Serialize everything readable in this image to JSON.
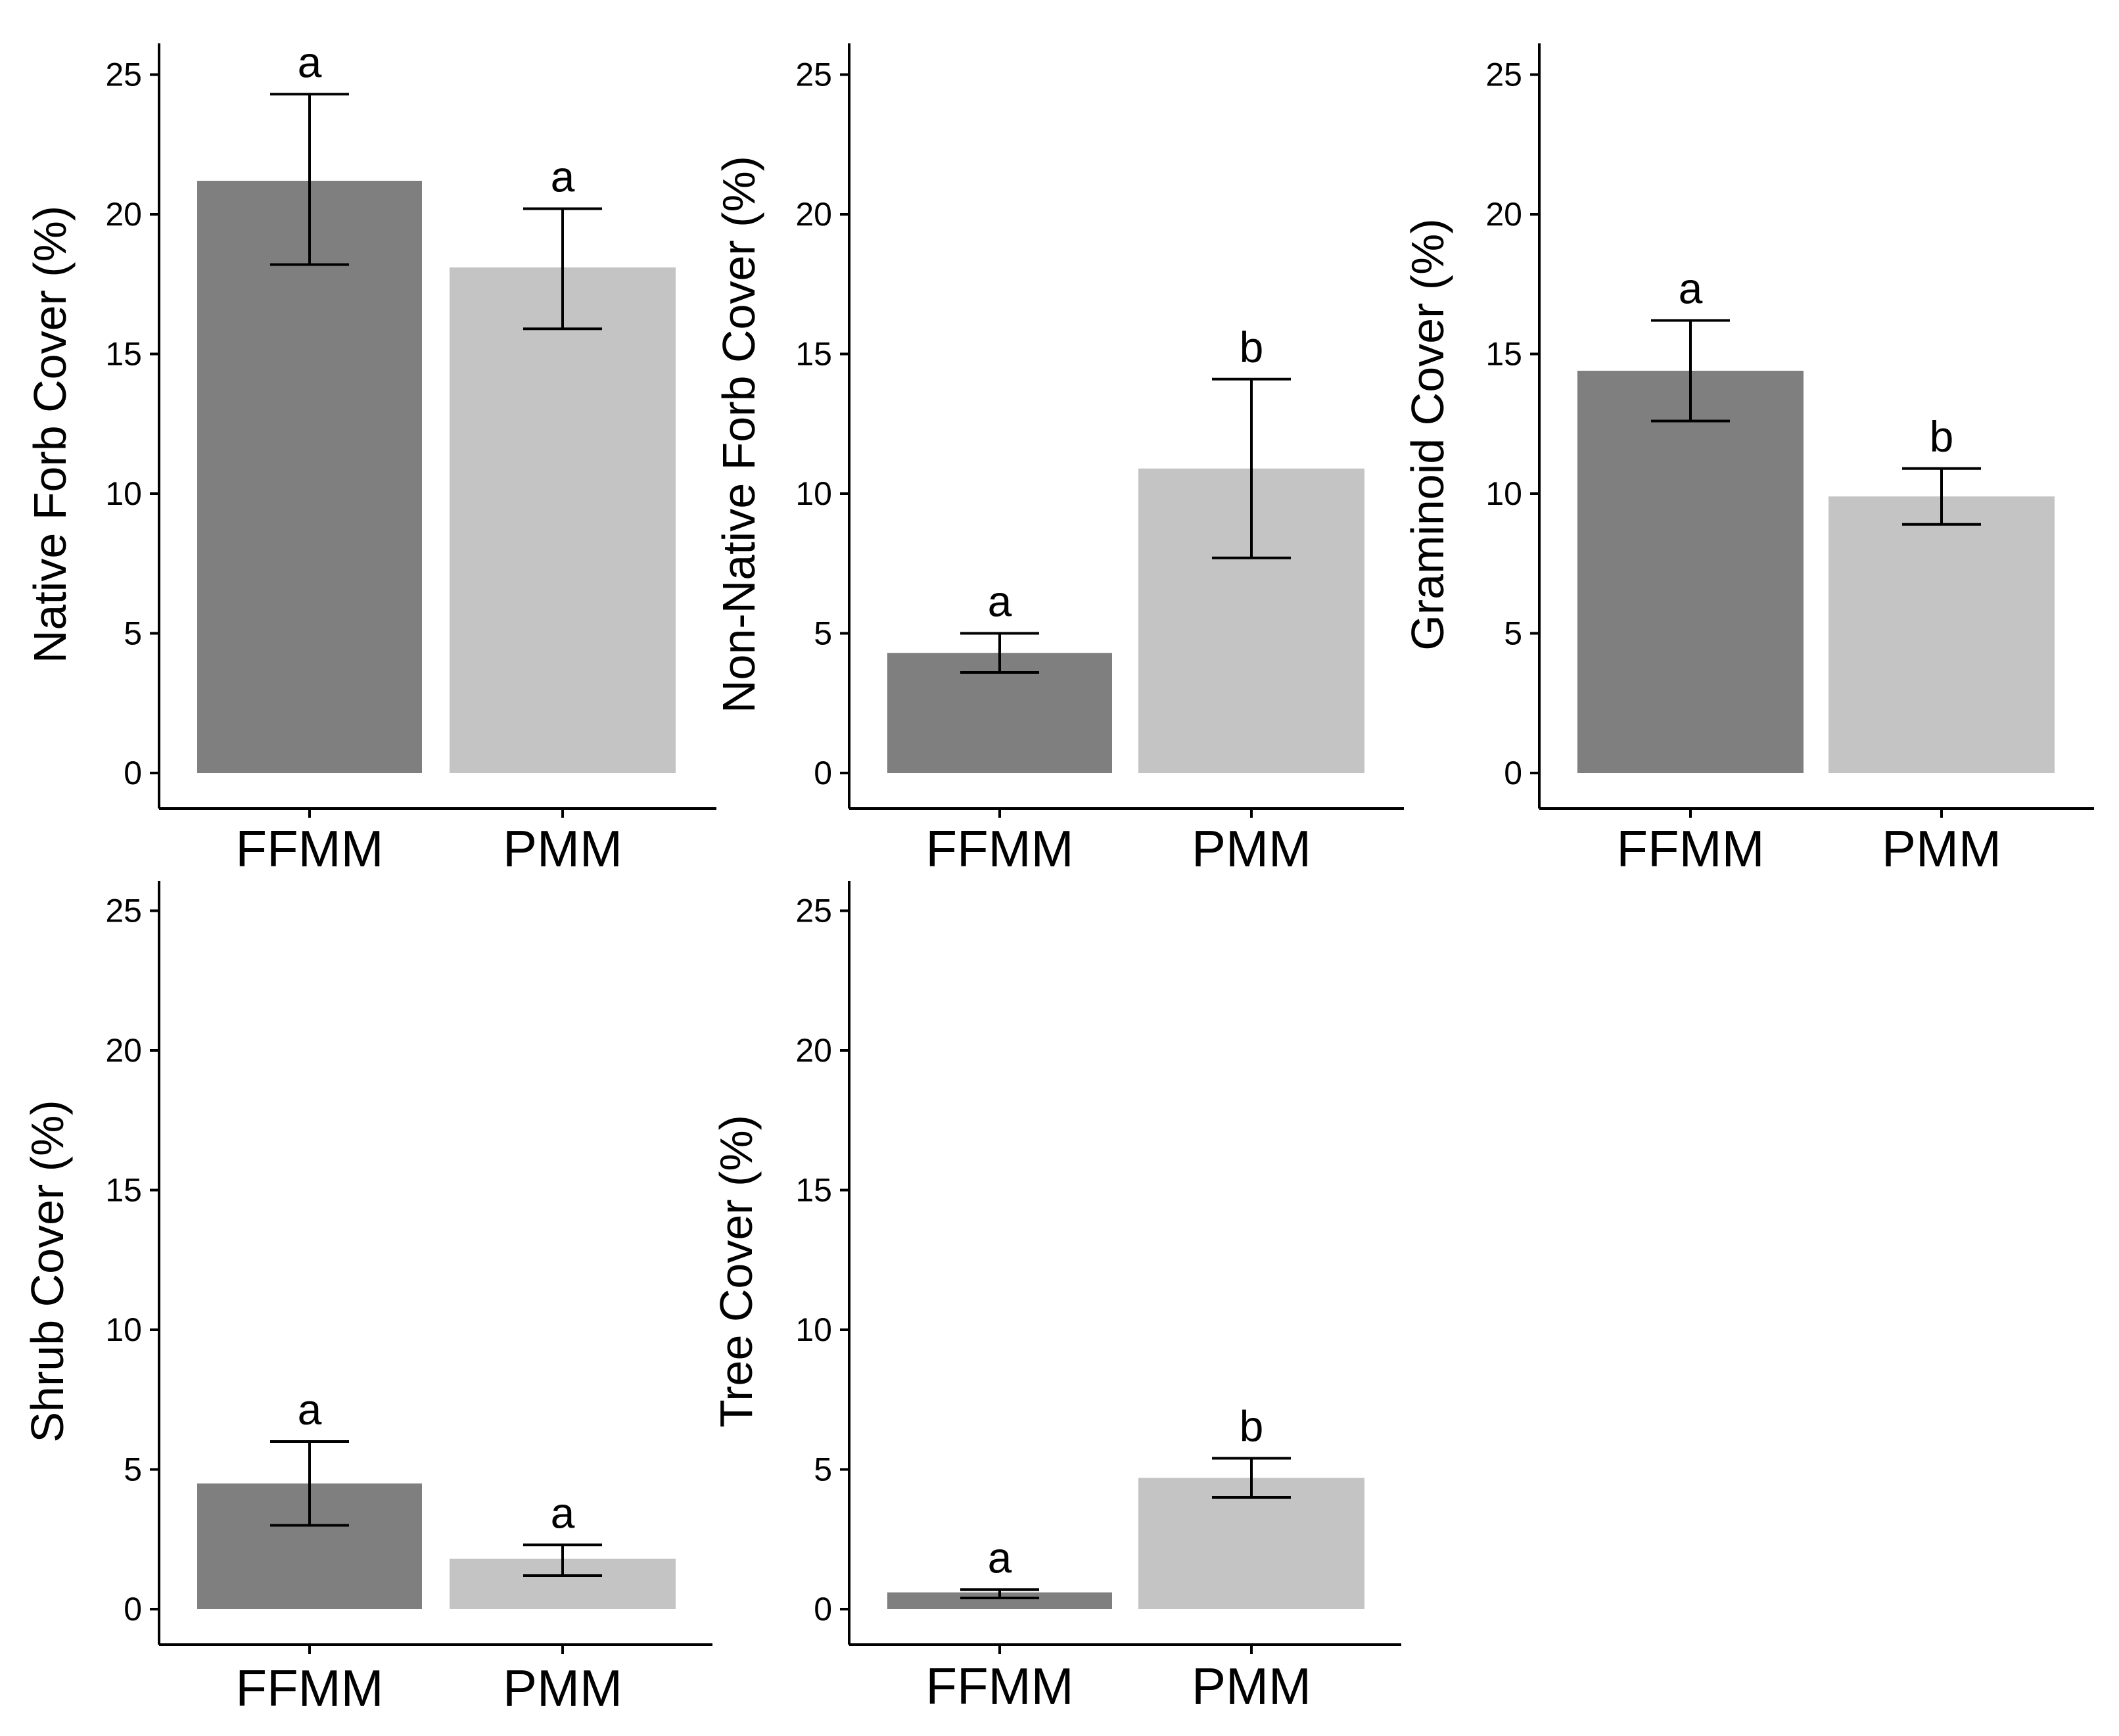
{
  "chart_data": [
    {
      "type": "bar",
      "ylabel": "Native Forb Cover (%)",
      "categories": [
        "FFMM",
        "PMM"
      ],
      "values": [
        21.2,
        18.1
      ],
      "error_low": [
        18.2,
        15.9
      ],
      "error_high": [
        24.3,
        20.2
      ],
      "letters": [
        "a",
        "a"
      ],
      "ylim": [
        0,
        26
      ],
      "yticks": [
        0,
        5,
        10,
        15,
        20,
        25
      ],
      "ytick_labels": [
        "0",
        "5",
        "10",
        "15",
        "20",
        "25"
      ]
    },
    {
      "type": "bar",
      "ylabel": "Non-Native Forb Cover (%)",
      "categories": [
        "FFMM",
        "PMM"
      ],
      "values": [
        4.3,
        10.9
      ],
      "error_low": [
        3.6,
        7.7
      ],
      "error_high": [
        5.0,
        14.1
      ],
      "letters": [
        "a",
        "b"
      ],
      "ylim": [
        0,
        26
      ],
      "yticks": [
        0,
        5,
        10,
        15,
        20,
        25
      ],
      "ytick_labels": [
        "0",
        "5",
        "10",
        "15",
        "20",
        "25"
      ]
    },
    {
      "type": "bar",
      "ylabel": "Graminoid Cover (%)",
      "categories": [
        "FFMM",
        "PMM"
      ],
      "values": [
        14.4,
        9.9
      ],
      "error_low": [
        12.6,
        8.9
      ],
      "error_high": [
        16.2,
        10.9
      ],
      "letters": [
        "a",
        "b"
      ],
      "ylim": [
        0,
        26
      ],
      "yticks": [
        0,
        5,
        10,
        15,
        20,
        25
      ],
      "ytick_labels": [
        "0",
        "5",
        "10",
        "15",
        "20",
        "25"
      ]
    },
    {
      "type": "bar",
      "ylabel": "Shrub Cover (%)",
      "categories": [
        "FFMM",
        "PMM"
      ],
      "values": [
        4.5,
        1.8
      ],
      "error_low": [
        3.0,
        1.2
      ],
      "error_high": [
        6.0,
        2.3
      ],
      "letters": [
        "a",
        "a"
      ],
      "ylim": [
        0,
        26
      ],
      "yticks": [
        0,
        5,
        10,
        15,
        20,
        25
      ],
      "ytick_labels": [
        "0",
        "5",
        "10",
        "15",
        "20",
        "25"
      ]
    },
    {
      "type": "bar",
      "ylabel": "Tree Cover (%)",
      "categories": [
        "FFMM",
        "PMM"
      ],
      "values": [
        0.6,
        4.7
      ],
      "error_low": [
        0.4,
        4.0
      ],
      "error_high": [
        0.7,
        5.4
      ],
      "letters": [
        "a",
        "b"
      ],
      "ylim": [
        0,
        26
      ],
      "yticks": [
        0,
        5,
        10,
        15,
        20,
        25
      ],
      "ytick_labels": [
        "0",
        "5",
        "10",
        "15",
        "20",
        "25"
      ]
    }
  ],
  "colors": {
    "bar_colors": [
      "#7f7f7f",
      "#c4c4c4"
    ],
    "axis": "#000000",
    "background": "#ffffff"
  }
}
